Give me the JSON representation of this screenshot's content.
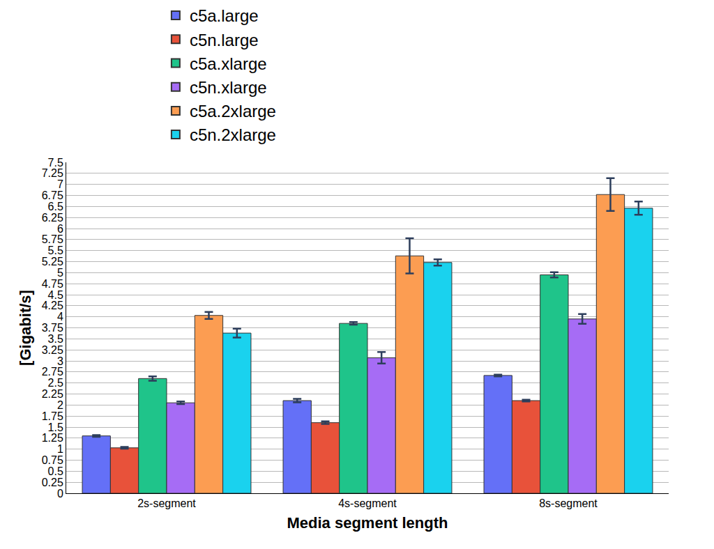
{
  "chart_data": {
    "type": "bar",
    "x_label": "Media segment length",
    "y_label": "[Gigabit/s]",
    "categories": [
      "2s-segment",
      "4s-segment",
      "8s-segment"
    ],
    "series": [
      {
        "name": "c5a.large",
        "color": "#6470f7",
        "values": [
          1.3,
          2.1,
          2.67
        ],
        "errors": [
          0.02,
          0.04,
          0.02
        ]
      },
      {
        "name": "c5n.large",
        "color": "#e8523a",
        "values": [
          1.03,
          1.6,
          2.1
        ],
        "errors": [
          0.02,
          0.03,
          0.02
        ]
      },
      {
        "name": "c5a.xlarge",
        "color": "#1fc48a",
        "values": [
          2.6,
          3.85,
          4.95
        ],
        "errors": [
          0.05,
          0.03,
          0.06
        ]
      },
      {
        "name": "c5n.xlarge",
        "color": "#a66cf5",
        "values": [
          2.05,
          3.07,
          3.95
        ],
        "errors": [
          0.03,
          0.13,
          0.11
        ]
      },
      {
        "name": "c5a.2xlarge",
        "color": "#fc9d52",
        "values": [
          4.03,
          5.38,
          6.77
        ],
        "errors": [
          0.08,
          0.4,
          0.37
        ]
      },
      {
        "name": "c5n.2xlarge",
        "color": "#1ad2ee",
        "values": [
          3.63,
          5.23,
          6.46
        ],
        "errors": [
          0.1,
          0.07,
          0.15
        ]
      }
    ],
    "ylim": [
      0,
      7.5
    ],
    "yticks": [
      0,
      0.25,
      0.5,
      0.75,
      1,
      1.25,
      1.5,
      1.75,
      2,
      2.25,
      2.5,
      2.75,
      3,
      3.25,
      3.5,
      3.75,
      4,
      4.25,
      4.5,
      4.75,
      5,
      5.25,
      5.5,
      5.75,
      6,
      6.25,
      6.5,
      6.75,
      7,
      7.25,
      7.5
    ],
    "grid": true,
    "legend": "top"
  }
}
